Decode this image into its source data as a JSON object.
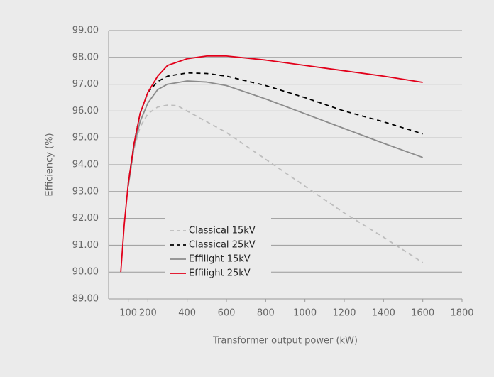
{
  "chart_data": {
    "type": "line",
    "x_label": "Transformer output power (kW)",
    "y_label": "Efficiency (%)",
    "xlim": [
      0,
      1800
    ],
    "xticks": [
      100,
      200,
      400,
      600,
      800,
      1000,
      1200,
      1400,
      1600,
      1800
    ],
    "ylim": [
      89,
      99
    ],
    "yticks": [
      {
        "value": 89,
        "label": "89.00"
      },
      {
        "value": 90,
        "label": "90.00"
      },
      {
        "value": 91,
        "label": "91.00"
      },
      {
        "value": 92,
        "label": "92.00"
      },
      {
        "value": 93,
        "label": "93.00"
      },
      {
        "value": 94,
        "label": "94.00"
      },
      {
        "value": 95,
        "label": "95.00"
      },
      {
        "value": 96,
        "label": "96.00"
      },
      {
        "value": 97,
        "label": "97.00"
      },
      {
        "value": 98,
        "label": "98.00"
      },
      {
        "value": 99,
        "label": "99.00"
      }
    ],
    "grid": true,
    "legend": "lower center",
    "series": [
      {
        "name": "Classical 15kV",
        "color": "#bdbdbd",
        "dash": true,
        "x": [
          100,
          130,
          160,
          200,
          250,
          300,
          350,
          400,
          600,
          800,
          1000,
          1200,
          1400,
          1600
        ],
        "values": [
          93.2,
          94.6,
          95.4,
          95.9,
          96.15,
          96.22,
          96.2,
          96.0,
          95.2,
          94.2,
          93.2,
          92.2,
          91.3,
          90.35
        ]
      },
      {
        "name": "Classical 25kV",
        "color": "#000000",
        "dash": true,
        "x": [
          100,
          130,
          160,
          200,
          250,
          300,
          400,
          500,
          600,
          800,
          1000,
          1200,
          1400,
          1600
        ],
        "values": [
          93.3,
          94.8,
          95.9,
          96.7,
          97.1,
          97.3,
          97.42,
          97.4,
          97.3,
          96.95,
          96.5,
          96.0,
          95.6,
          95.15
        ]
      },
      {
        "name": "Effilight 15kV",
        "color": "#8c8c8c",
        "dash": false,
        "x": [
          100,
          130,
          160,
          200,
          250,
          300,
          400,
          500,
          600,
          800,
          1000,
          1200,
          1400,
          1600
        ],
        "values": [
          93.2,
          94.7,
          95.6,
          96.3,
          96.8,
          97.0,
          97.12,
          97.08,
          96.95,
          96.45,
          95.9,
          95.35,
          94.8,
          94.27
        ]
      },
      {
        "name": "Effilight 25kV",
        "color": "#e2001a",
        "dash": false,
        "x": [
          62,
          80,
          100,
          130,
          160,
          200,
          250,
          300,
          400,
          500,
          600,
          800,
          1000,
          1200,
          1400,
          1600
        ],
        "values": [
          90.0,
          91.8,
          93.3,
          94.8,
          95.9,
          96.7,
          97.3,
          97.7,
          97.95,
          98.05,
          98.05,
          97.9,
          97.7,
          97.5,
          97.3,
          97.07
        ]
      }
    ]
  }
}
